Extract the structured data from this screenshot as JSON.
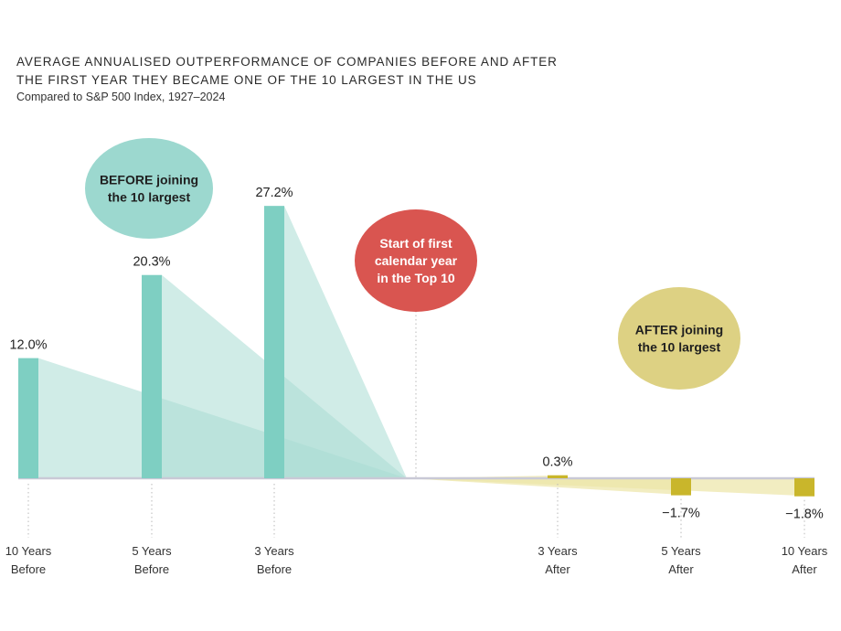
{
  "title": {
    "line1": "AVERAGE ANNUALISED OUTPERFORMANCE OF COMPANIES BEFORE AND AFTER",
    "line2": "THE FIRST YEAR THEY BECAME ONE OF THE 10 LARGEST IN THE US",
    "subtitle": "Compared to S&P 500 Index, 1927–2024"
  },
  "colors": {
    "before_bar": "#7ecfc2",
    "before_fill": "#a9ddd4",
    "after_bar": "#c9b62b",
    "after_fill": "#ece5a6",
    "before_bubble": "#9cd8cf",
    "start_bubble": "#d95550",
    "after_bubble": "#ddd183",
    "axis": "#c9c9d6"
  },
  "bubbles": {
    "before": [
      "BEFORE joining",
      "the 10 largest"
    ],
    "start": [
      "Start of first",
      "calendar year",
      "in the Top 10"
    ],
    "after": [
      "AFTER joining",
      "the 10 largest"
    ]
  },
  "chart_data": {
    "type": "bar",
    "title": "AVERAGE ANNUALISED OUTPERFORMANCE OF COMPANIES BEFORE AND AFTER THE FIRST YEAR THEY BECAME ONE OF THE 10 LARGEST IN THE US",
    "subtitle": "Compared to S&P 500 Index, 1927–2024",
    "xlabel": "",
    "ylabel": "",
    "ylim": [
      -2,
      28
    ],
    "categories": [
      [
        "10 Years",
        "Before"
      ],
      [
        "5 Years",
        "Before"
      ],
      [
        "3 Years",
        "Before"
      ],
      [
        "3 Years",
        "After"
      ],
      [
        "5 Years",
        "After"
      ],
      [
        "10 Years",
        "After"
      ]
    ],
    "values": [
      12.0,
      20.3,
      27.2,
      0.3,
      -1.7,
      -1.8
    ],
    "labels": [
      "12.0%",
      "20.3%",
      "27.2%",
      "0.3%",
      "−1.7%",
      "−1.8%"
    ],
    "groups": [
      "before",
      "before",
      "before",
      "after",
      "after",
      "after"
    ]
  }
}
